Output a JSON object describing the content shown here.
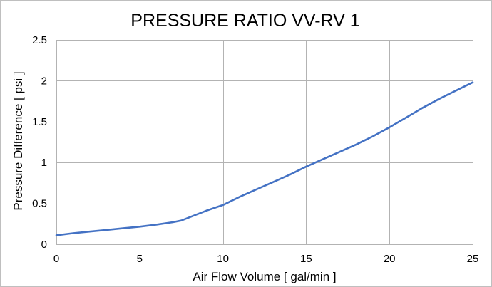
{
  "chart_data": {
    "type": "line",
    "title": "PRESSURE RATIO VV-RV 1",
    "xlabel": "Air Flow Volume [ gal/min ]",
    "ylabel": "Pressure Difference [ psi ]",
    "xlim": [
      0,
      25
    ],
    "ylim": [
      0,
      2.5
    ],
    "x_ticks": [
      "0",
      "5",
      "10",
      "15",
      "20",
      "25"
    ],
    "y_ticks": [
      "0",
      "0.5",
      "1",
      "1.5",
      "2",
      "2.5"
    ],
    "grid": true,
    "legend": "none",
    "series": [
      {
        "color": "#4472c4",
        "x": [
          0,
          1,
          2,
          3,
          4,
          5,
          6,
          7,
          7.5,
          8,
          9,
          10,
          11,
          12,
          13,
          14,
          15,
          16,
          17,
          18,
          19,
          20,
          21,
          22,
          23,
          24,
          25
        ],
        "y": [
          0.11,
          0.135,
          0.155,
          0.175,
          0.195,
          0.215,
          0.24,
          0.27,
          0.29,
          0.33,
          0.41,
          0.48,
          0.58,
          0.67,
          0.76,
          0.85,
          0.95,
          1.04,
          1.13,
          1.22,
          1.32,
          1.43,
          1.55,
          1.67,
          1.78,
          1.88,
          1.98
        ]
      }
    ]
  }
}
